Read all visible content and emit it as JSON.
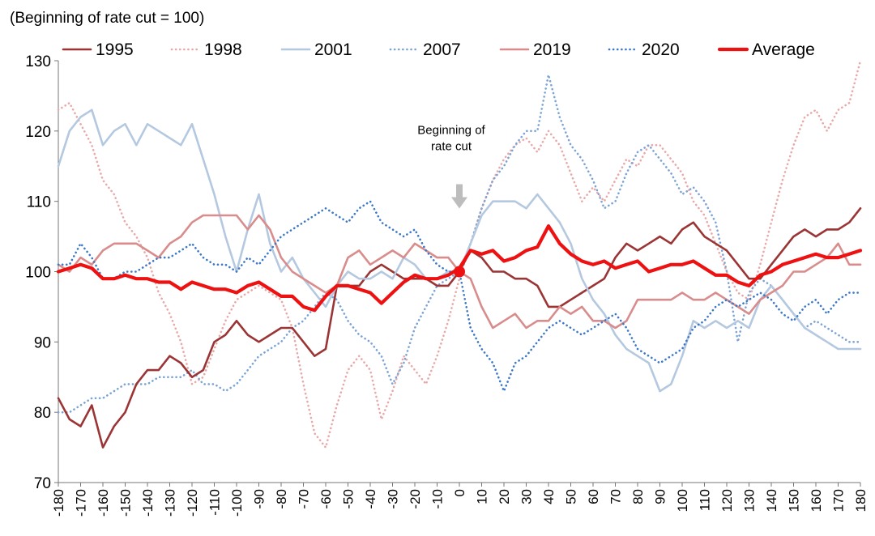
{
  "chart_data": {
    "type": "line",
    "subtitle": "(Beginning of rate cut = 100)",
    "xlabel": "",
    "ylabel": "",
    "xlim": [
      -180,
      180
    ],
    "ylim": [
      70,
      130
    ],
    "yticks": [
      70,
      80,
      90,
      100,
      110,
      120,
      130
    ],
    "xticks": [
      -180,
      -170,
      -160,
      -150,
      -140,
      -130,
      -120,
      -110,
      -100,
      -90,
      -80,
      -70,
      -60,
      -50,
      -40,
      -30,
      -20,
      -10,
      0,
      10,
      20,
      30,
      40,
      50,
      60,
      70,
      80,
      90,
      100,
      110,
      120,
      130,
      140,
      150,
      160,
      170,
      180
    ],
    "grid": false,
    "legend_position": "top",
    "annotation": {
      "lines": [
        "Beginning of",
        "rate cut"
      ],
      "x": 0,
      "y": 100
    },
    "series": [
      {
        "name": "1995",
        "color": "#9B3434",
        "style": "solid",
        "width": 2.6,
        "x": [
          -180,
          -175,
          -170,
          -165,
          -160,
          -155,
          -150,
          -145,
          -140,
          -135,
          -130,
          -125,
          -120,
          -115,
          -110,
          -105,
          -100,
          -95,
          -90,
          -85,
          -80,
          -75,
          -70,
          -65,
          -60,
          -55,
          -50,
          -45,
          -40,
          -35,
          -30,
          -25,
          -20,
          -15,
          -10,
          -5,
          0,
          5,
          10,
          15,
          20,
          25,
          30,
          35,
          40,
          45,
          50,
          55,
          60,
          65,
          70,
          75,
          80,
          85,
          90,
          95,
          100,
          105,
          110,
          115,
          120,
          125,
          130,
          135,
          140,
          145,
          150,
          155,
          160,
          165,
          170,
          175,
          180
        ],
        "y": [
          82,
          79,
          78,
          81,
          75,
          78,
          80,
          84,
          86,
          86,
          88,
          87,
          85,
          86,
          90,
          91,
          93,
          91,
          90,
          91,
          92,
          92,
          90,
          88,
          89,
          98,
          98,
          98,
          100,
          101,
          100,
          99,
          99,
          99,
          98,
          98,
          100,
          103,
          102,
          100,
          100,
          99,
          99,
          98,
          95,
          95,
          96,
          97,
          98,
          99,
          102,
          104,
          103,
          104,
          105,
          104,
          106,
          107,
          105,
          104,
          103,
          101,
          99,
          99,
          101,
          103,
          105,
          106,
          105,
          106,
          106,
          107,
          109
        ]
      },
      {
        "name": "1998",
        "color": "#E8A8A8",
        "style": "dotted",
        "width": 2.6,
        "x": [
          -180,
          -175,
          -170,
          -165,
          -160,
          -155,
          -150,
          -145,
          -140,
          -135,
          -130,
          -125,
          -120,
          -115,
          -110,
          -105,
          -100,
          -95,
          -90,
          -85,
          -80,
          -75,
          -70,
          -65,
          -60,
          -55,
          -50,
          -45,
          -40,
          -35,
          -30,
          -25,
          -20,
          -15,
          -10,
          -5,
          0,
          5,
          10,
          15,
          20,
          25,
          30,
          35,
          40,
          45,
          50,
          55,
          60,
          65,
          70,
          75,
          80,
          85,
          90,
          95,
          100,
          105,
          110,
          115,
          120,
          125,
          130,
          135,
          140,
          145,
          150,
          155,
          160,
          165,
          170,
          175,
          180
        ],
        "y": [
          123,
          124,
          121,
          118,
          113,
          111,
          107,
          105,
          102,
          97,
          94,
          90,
          84,
          85,
          89,
          93,
          96,
          97,
          98,
          97,
          96,
          92,
          84,
          77,
          75,
          81,
          86,
          88,
          86,
          79,
          83,
          88,
          86,
          84,
          88,
          93,
          99,
          104,
          109,
          113,
          116,
          118,
          119,
          117,
          120,
          118,
          114,
          110,
          112,
          110,
          113,
          116,
          115,
          118,
          118,
          116,
          114,
          110,
          108,
          104,
          100,
          97,
          96,
          101,
          107,
          113,
          118,
          122,
          123,
          120,
          123,
          124,
          130
        ]
      },
      {
        "name": "2001",
        "color": "#B4C8E0",
        "style": "solid",
        "width": 2.6,
        "x": [
          -180,
          -175,
          -170,
          -165,
          -160,
          -155,
          -150,
          -145,
          -140,
          -135,
          -130,
          -125,
          -120,
          -115,
          -110,
          -105,
          -100,
          -95,
          -90,
          -85,
          -80,
          -75,
          -70,
          -65,
          -60,
          -55,
          -50,
          -45,
          -40,
          -35,
          -30,
          -25,
          -20,
          -15,
          -10,
          -5,
          0,
          5,
          10,
          15,
          20,
          25,
          30,
          35,
          40,
          45,
          50,
          55,
          60,
          65,
          70,
          75,
          80,
          85,
          90,
          95,
          100,
          105,
          110,
          115,
          120,
          125,
          130,
          135,
          140,
          145,
          150,
          155,
          160,
          165,
          170,
          175,
          180
        ],
        "y": [
          115,
          120,
          122,
          123,
          118,
          120,
          121,
          118,
          121,
          120,
          119,
          118,
          121,
          116,
          111,
          105,
          100,
          106,
          111,
          104,
          100,
          102,
          99,
          97,
          95,
          98,
          100,
          99,
          99,
          100,
          99,
          102,
          101,
          99,
          99,
          100,
          100,
          104,
          108,
          110,
          110,
          110,
          109,
          111,
          109,
          107,
          104,
          99,
          96,
          94,
          91,
          89,
          88,
          87,
          83,
          84,
          88,
          93,
          92,
          93,
          92,
          93,
          92,
          96,
          98,
          96,
          94,
          92,
          91,
          90,
          89,
          89,
          89
        ]
      },
      {
        "name": "2007",
        "color": "#7BA3D4",
        "style": "dotted",
        "width": 2.6,
        "x": [
          -180,
          -175,
          -170,
          -165,
          -160,
          -155,
          -150,
          -145,
          -140,
          -135,
          -130,
          -125,
          -120,
          -115,
          -110,
          -105,
          -100,
          -95,
          -90,
          -85,
          -80,
          -75,
          -70,
          -65,
          -60,
          -55,
          -50,
          -45,
          -40,
          -35,
          -30,
          -25,
          -20,
          -15,
          -10,
          -5,
          0,
          5,
          10,
          15,
          20,
          25,
          30,
          35,
          40,
          45,
          50,
          55,
          60,
          65,
          70,
          75,
          80,
          85,
          90,
          95,
          100,
          105,
          110,
          115,
          120,
          125,
          130,
          135,
          140,
          145,
          150,
          155,
          160,
          165,
          170,
          175,
          180
        ],
        "y": [
          80,
          80,
          81,
          82,
          82,
          83,
          84,
          84,
          84,
          85,
          85,
          85,
          86,
          84,
          84,
          83,
          84,
          86,
          88,
          89,
          90,
          92,
          93,
          95,
          97,
          96,
          93,
          91,
          90,
          88,
          84,
          87,
          92,
          95,
          98,
          99,
          100,
          104,
          109,
          113,
          115,
          118,
          120,
          120,
          128,
          122,
          118,
          116,
          113,
          109,
          110,
          114,
          117,
          118,
          116,
          114,
          111,
          112,
          110,
          107,
          100,
          90,
          97,
          99,
          98,
          96,
          94,
          92,
          93,
          92,
          91,
          90,
          90
        ]
      },
      {
        "name": "2019",
        "color": "#D98C8C",
        "style": "solid",
        "width": 2.6,
        "x": [
          -180,
          -175,
          -170,
          -165,
          -160,
          -155,
          -150,
          -145,
          -140,
          -135,
          -130,
          -125,
          -120,
          -115,
          -110,
          -105,
          -100,
          -95,
          -90,
          -85,
          -80,
          -75,
          -70,
          -65,
          -60,
          -55,
          -50,
          -45,
          -40,
          -35,
          -30,
          -25,
          -20,
          -15,
          -10,
          -5,
          0,
          5,
          10,
          15,
          20,
          25,
          30,
          35,
          40,
          45,
          50,
          55,
          60,
          65,
          70,
          75,
          80,
          85,
          90,
          95,
          100,
          105,
          110,
          115,
          120,
          125,
          130,
          135,
          140,
          145,
          150,
          155,
          160,
          165,
          170,
          175,
          180
        ],
        "y": [
          101,
          100,
          102,
          101,
          103,
          104,
          104,
          104,
          103,
          102,
          104,
          105,
          107,
          108,
          108,
          108,
          108,
          106,
          108,
          106,
          102,
          100,
          99,
          98,
          97,
          98,
          102,
          103,
          101,
          102,
          103,
          102,
          104,
          103,
          102,
          102,
          100,
          99,
          95,
          92,
          93,
          94,
          92,
          93,
          93,
          95,
          94,
          95,
          93,
          93,
          92,
          93,
          96,
          96,
          96,
          96,
          97,
          96,
          96,
          97,
          96,
          95,
          94,
          96,
          97,
          98,
          100,
          100,
          101,
          102,
          104,
          101,
          101
        ]
      },
      {
        "name": "2020",
        "color": "#3D78C6",
        "style": "dotted",
        "width": 2.6,
        "x": [
          -180,
          -175,
          -170,
          -165,
          -160,
          -155,
          -150,
          -145,
          -140,
          -135,
          -130,
          -125,
          -120,
          -115,
          -110,
          -105,
          -100,
          -95,
          -90,
          -85,
          -80,
          -75,
          -70,
          -65,
          -60,
          -55,
          -50,
          -45,
          -40,
          -35,
          -30,
          -25,
          -20,
          -15,
          -10,
          -5,
          0,
          5,
          10,
          15,
          20,
          25,
          30,
          35,
          40,
          45,
          50,
          55,
          60,
          65,
          70,
          75,
          80,
          85,
          90,
          95,
          100,
          105,
          110,
          115,
          120,
          125,
          130,
          135,
          140,
          145,
          150,
          155,
          160,
          165,
          170,
          175,
          180
        ],
        "y": [
          101,
          101,
          104,
          102,
          99,
          99,
          100,
          100,
          101,
          102,
          102,
          103,
          104,
          102,
          101,
          101,
          100,
          102,
          101,
          103,
          105,
          106,
          107,
          108,
          109,
          108,
          107,
          109,
          110,
          107,
          106,
          105,
          106,
          103,
          101,
          100,
          100,
          92,
          89,
          87,
          83,
          87,
          88,
          90,
          92,
          93,
          92,
          91,
          92,
          93,
          94,
          92,
          89,
          88,
          87,
          88,
          89,
          92,
          93,
          95,
          96,
          95,
          96,
          97,
          96,
          94,
          93,
          95,
          96,
          94,
          96,
          97,
          97
        ]
      },
      {
        "name": "Average",
        "color": "#EE1111",
        "style": "solid",
        "width": 4.2,
        "x": [
          -180,
          -175,
          -170,
          -165,
          -160,
          -155,
          -150,
          -145,
          -140,
          -135,
          -130,
          -125,
          -120,
          -115,
          -110,
          -105,
          -100,
          -95,
          -90,
          -85,
          -80,
          -75,
          -70,
          -65,
          -60,
          -55,
          -50,
          -45,
          -40,
          -35,
          -30,
          -25,
          -20,
          -15,
          -10,
          -5,
          0,
          5,
          10,
          15,
          20,
          25,
          30,
          35,
          40,
          45,
          50,
          55,
          60,
          65,
          70,
          75,
          80,
          85,
          90,
          95,
          100,
          105,
          110,
          115,
          120,
          125,
          130,
          135,
          140,
          145,
          150,
          155,
          160,
          165,
          170,
          175,
          180
        ],
        "y": [
          100,
          100.5,
          101,
          100.5,
          99,
          99,
          99.5,
          99,
          99,
          98.5,
          98.5,
          97.5,
          98.5,
          98,
          97.5,
          97.5,
          97,
          98,
          98.5,
          97.5,
          96.5,
          96.5,
          95,
          94.5,
          96.5,
          98,
          98,
          97.5,
          97,
          95.5,
          97,
          98.5,
          99.5,
          99,
          99,
          99.5,
          100.5,
          103,
          102.5,
          103,
          101.5,
          102,
          103,
          103.5,
          106.5,
          104,
          102.5,
          101.5,
          101,
          101.5,
          100.5,
          101,
          101.5,
          100,
          100.5,
          101,
          101,
          101.5,
          100.5,
          99.5,
          99.5,
          98.5,
          98,
          99.5,
          100,
          101,
          101.5,
          102,
          102.5,
          102,
          102,
          102.5,
          103
        ]
      }
    ]
  }
}
